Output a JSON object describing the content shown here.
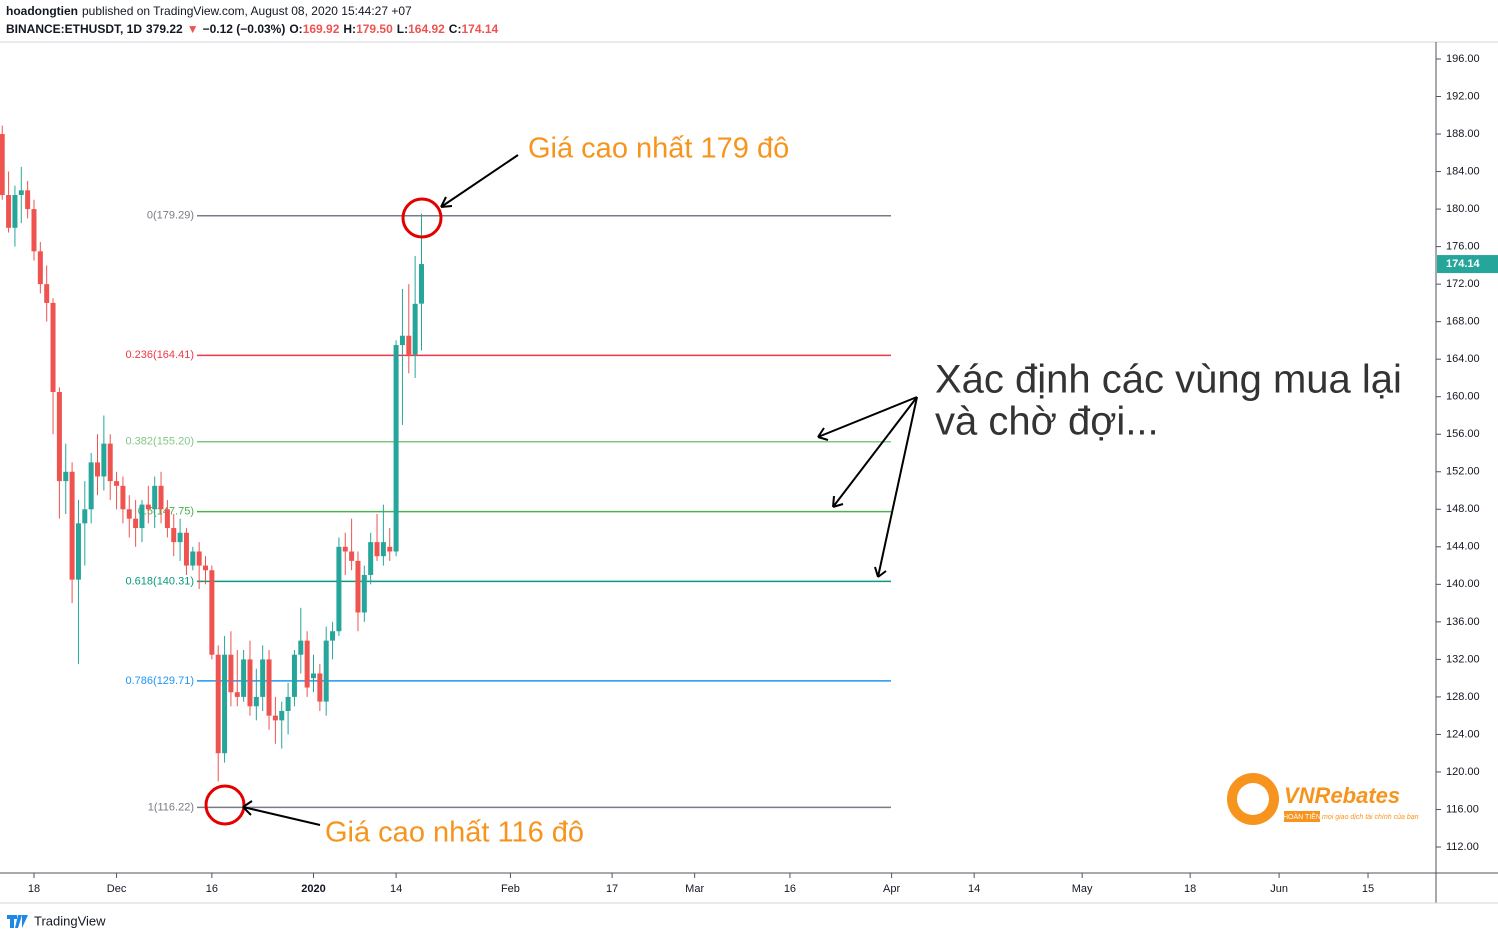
{
  "header": {
    "line1": [
      {
        "text": "hoadongtien",
        "bold": true
      },
      {
        "text": "published on TradingView.com, August 08, 2020 15:44:27 +07",
        "bold": false
      }
    ],
    "line2": [
      {
        "text": "BINANCE:ETHUSDT, 1D",
        "color": "#131722"
      },
      {
        "text": "379.22",
        "color": "#131722"
      },
      {
        "text": "▼",
        "color": "#ef5350"
      },
      {
        "text": "−0.12 (−0.03%)",
        "color": "#131722"
      },
      {
        "text": "O:",
        "color": "#131722"
      },
      {
        "text": "169.92",
        "color": "#ef5350"
      },
      {
        "text": "H:",
        "color": "#131722"
      },
      {
        "text": "179.50",
        "color": "#ef5350"
      },
      {
        "text": "L:",
        "color": "#131722"
      },
      {
        "text": "164.92",
        "color": "#ef5350"
      },
      {
        "text": "C:",
        "color": "#131722"
      },
      {
        "text": "174.14",
        "color": "#ef5350"
      }
    ]
  },
  "chart_data": {
    "type": "candlestick",
    "up_color": "#26a69a",
    "down_color": "#ef5350",
    "x": [
      0,
      1,
      2,
      3,
      4,
      5,
      6,
      7,
      8,
      9,
      10,
      11,
      12,
      13,
      14,
      15,
      16,
      17,
      18,
      19,
      20,
      21,
      22,
      23,
      24,
      25,
      26,
      27,
      28,
      29,
      30,
      31,
      32,
      33,
      34,
      35,
      36,
      37,
      38,
      39,
      40,
      41,
      42,
      43,
      44,
      45,
      46,
      47,
      48,
      49,
      50,
      51,
      52,
      53,
      54,
      55,
      56,
      57,
      58,
      59,
      60,
      61,
      62,
      63,
      64,
      65,
      66
    ],
    "open": [
      188.0,
      181.5,
      178.0,
      181.5,
      182.0,
      180.0,
      175.5,
      172.0,
      170.0,
      160.5,
      151.0,
      152.0,
      140.5,
      146.5,
      148.0,
      153.0,
      151.5,
      155.0,
      151.0,
      150.5,
      148.0,
      147.0,
      146.0,
      148.5,
      148.0,
      150.5,
      148.0,
      146.0,
      144.5,
      145.5,
      142.0,
      143.5,
      142.0,
      141.5,
      132.5,
      122.0,
      132.5,
      128.5,
      128.0,
      132.0,
      127.0,
      128.0,
      132.0,
      126.0,
      125.5,
      126.5,
      128.0,
      132.5,
      134.0,
      130.0,
      130.5,
      127.5,
      134.0,
      135.0,
      144.0,
      143.5,
      142.5,
      137.0,
      141.0,
      144.5,
      143.0,
      144.0,
      143.5,
      165.5,
      166.5,
      164.5,
      169.92
    ],
    "high": [
      188.9,
      184.0,
      182.5,
      184.5,
      183.0,
      181.0,
      176.5,
      174.0,
      170.5,
      161.0,
      155.0,
      153.0,
      149.0,
      151.0,
      154.0,
      156.0,
      158.0,
      156.0,
      152.0,
      151.5,
      149.5,
      149.0,
      149.0,
      150.5,
      151.5,
      152.0,
      149.0,
      147.5,
      147.0,
      146.0,
      144.0,
      144.5,
      143.0,
      142.0,
      133.5,
      134.5,
      135.0,
      133.0,
      133.0,
      134.0,
      131.0,
      133.5,
      133.0,
      128.0,
      127.5,
      129.5,
      133.0,
      137.5,
      135.0,
      132.5,
      131.5,
      135.5,
      136.0,
      145.0,
      145.5,
      147.0,
      143.5,
      142.0,
      145.5,
      147.5,
      148.5,
      146.0,
      166.0,
      171.5,
      172.0,
      175.0,
      179.5
    ],
    "low": [
      181.0,
      177.5,
      176.0,
      178.5,
      179.0,
      174.5,
      171.0,
      168.0,
      156.0,
      147.0,
      147.5,
      138.0,
      131.5,
      142.0,
      146.5,
      149.5,
      150.0,
      149.0,
      148.0,
      146.5,
      145.0,
      144.0,
      144.5,
      146.5,
      146.0,
      146.5,
      145.0,
      143.0,
      142.5,
      141.0,
      141.5,
      139.5,
      140.0,
      132.0,
      119.0,
      121.0,
      127.0,
      127.0,
      127.5,
      126.0,
      125.5,
      126.5,
      124.5,
      123.0,
      122.5,
      124.0,
      127.0,
      130.5,
      128.0,
      128.5,
      126.5,
      126.0,
      132.0,
      134.5,
      141.0,
      141.5,
      135.0,
      136.0,
      140.0,
      142.5,
      142.0,
      142.5,
      143.0,
      157.0,
      162.5,
      162.0,
      164.92
    ],
    "close": [
      181.5,
      178.0,
      181.5,
      182.0,
      180.0,
      175.5,
      172.0,
      170.0,
      160.5,
      151.0,
      152.0,
      140.5,
      146.5,
      148.0,
      153.0,
      151.5,
      155.0,
      151.0,
      150.5,
      148.0,
      147.0,
      146.0,
      148.5,
      148.0,
      150.5,
      148.0,
      146.0,
      144.5,
      145.5,
      142.0,
      143.5,
      142.0,
      141.5,
      132.5,
      122.0,
      132.5,
      128.5,
      128.0,
      132.0,
      127.0,
      128.0,
      132.0,
      126.0,
      125.5,
      126.5,
      128.0,
      132.5,
      134.0,
      129.0,
      130.5,
      127.5,
      134.0,
      135.0,
      144.0,
      143.5,
      142.5,
      137.0,
      141.0,
      144.5,
      143.0,
      144.5,
      143.5,
      165.5,
      166.5,
      164.5,
      169.9,
      174.14
    ],
    "xlim": [
      -0.35,
      225.7
    ],
    "xticks": [
      {
        "value": 5,
        "label": "18"
      },
      {
        "value": 18,
        "label": "Dec"
      },
      {
        "value": 33,
        "label": "16"
      },
      {
        "value": 49,
        "label": "2020"
      },
      {
        "value": 62,
        "label": "14"
      },
      {
        "value": 80,
        "label": "Feb"
      },
      {
        "value": 96,
        "label": "17"
      },
      {
        "value": 109,
        "label": "Mar"
      },
      {
        "value": 124,
        "label": "16"
      },
      {
        "value": 140,
        "label": "Apr"
      },
      {
        "value": 153,
        "label": "14"
      },
      {
        "value": 170,
        "label": "May"
      },
      {
        "value": 187,
        "label": "18"
      },
      {
        "value": 201,
        "label": "Jun"
      },
      {
        "value": 215,
        "label": "15"
      }
    ],
    "ylim": [
      109.23,
      197.81
    ],
    "yticks": [
      {
        "value": 112,
        "label": "112.00"
      },
      {
        "value": 116,
        "label": "116.00"
      },
      {
        "value": 120,
        "label": "120.00"
      },
      {
        "value": 124,
        "label": "124.00"
      },
      {
        "value": 128,
        "label": "128.00"
      },
      {
        "value": 132,
        "label": "132.00"
      },
      {
        "value": 136,
        "label": "136.00"
      },
      {
        "value": 140,
        "label": "140.00"
      },
      {
        "value": 144,
        "label": "144.00"
      },
      {
        "value": 148,
        "label": "148.00"
      },
      {
        "value": 152,
        "label": "152.00"
      },
      {
        "value": 156,
        "label": "156.00"
      },
      {
        "value": 160,
        "label": "160.00"
      },
      {
        "value": 164,
        "label": "164.00"
      },
      {
        "value": 168,
        "label": "168.00"
      },
      {
        "value": 172,
        "label": "172.00"
      },
      {
        "value": 176,
        "label": "176.00"
      },
      {
        "value": 180,
        "label": "180.00"
      },
      {
        "value": 184,
        "label": "184.00"
      },
      {
        "value": 188,
        "label": "188.00"
      },
      {
        "value": 192,
        "label": "192.00"
      },
      {
        "value": 196,
        "label": "196.00"
      }
    ],
    "last_price_color": "#26a69a",
    "fib_levels": [
      {
        "value": 179.29,
        "label": "0(179.29)",
        "color": "#787b86"
      },
      {
        "value": 164.41,
        "label": "0.236(164.41)",
        "color": "#f23645"
      },
      {
        "value": 155.2,
        "label": "0.382(155.20)",
        "color": "#81c784"
      },
      {
        "value": 147.75,
        "label": "0.5(147.75)",
        "color": "#4caf50"
      },
      {
        "value": 140.31,
        "label": "0.618(140.31)",
        "color": "#089981"
      },
      {
        "value": 129.71,
        "label": "0.786(129.71)",
        "color": "#2196f3"
      },
      {
        "value": 116.22,
        "label": "1(116.22)",
        "color": "#787b86"
      }
    ],
    "annotations": [
      "Giá cao nhất 179 đô",
      "Giá cao nhất 116 đô",
      "Xác định các vùng mua lại",
      "và chờ đợi..."
    ]
  },
  "logo": {
    "name": "VNRebates",
    "tag": "HOÀN TIỀN",
    "slogan": "mọi giao dịch tài chính của bạn"
  },
  "footer": "TradingView"
}
